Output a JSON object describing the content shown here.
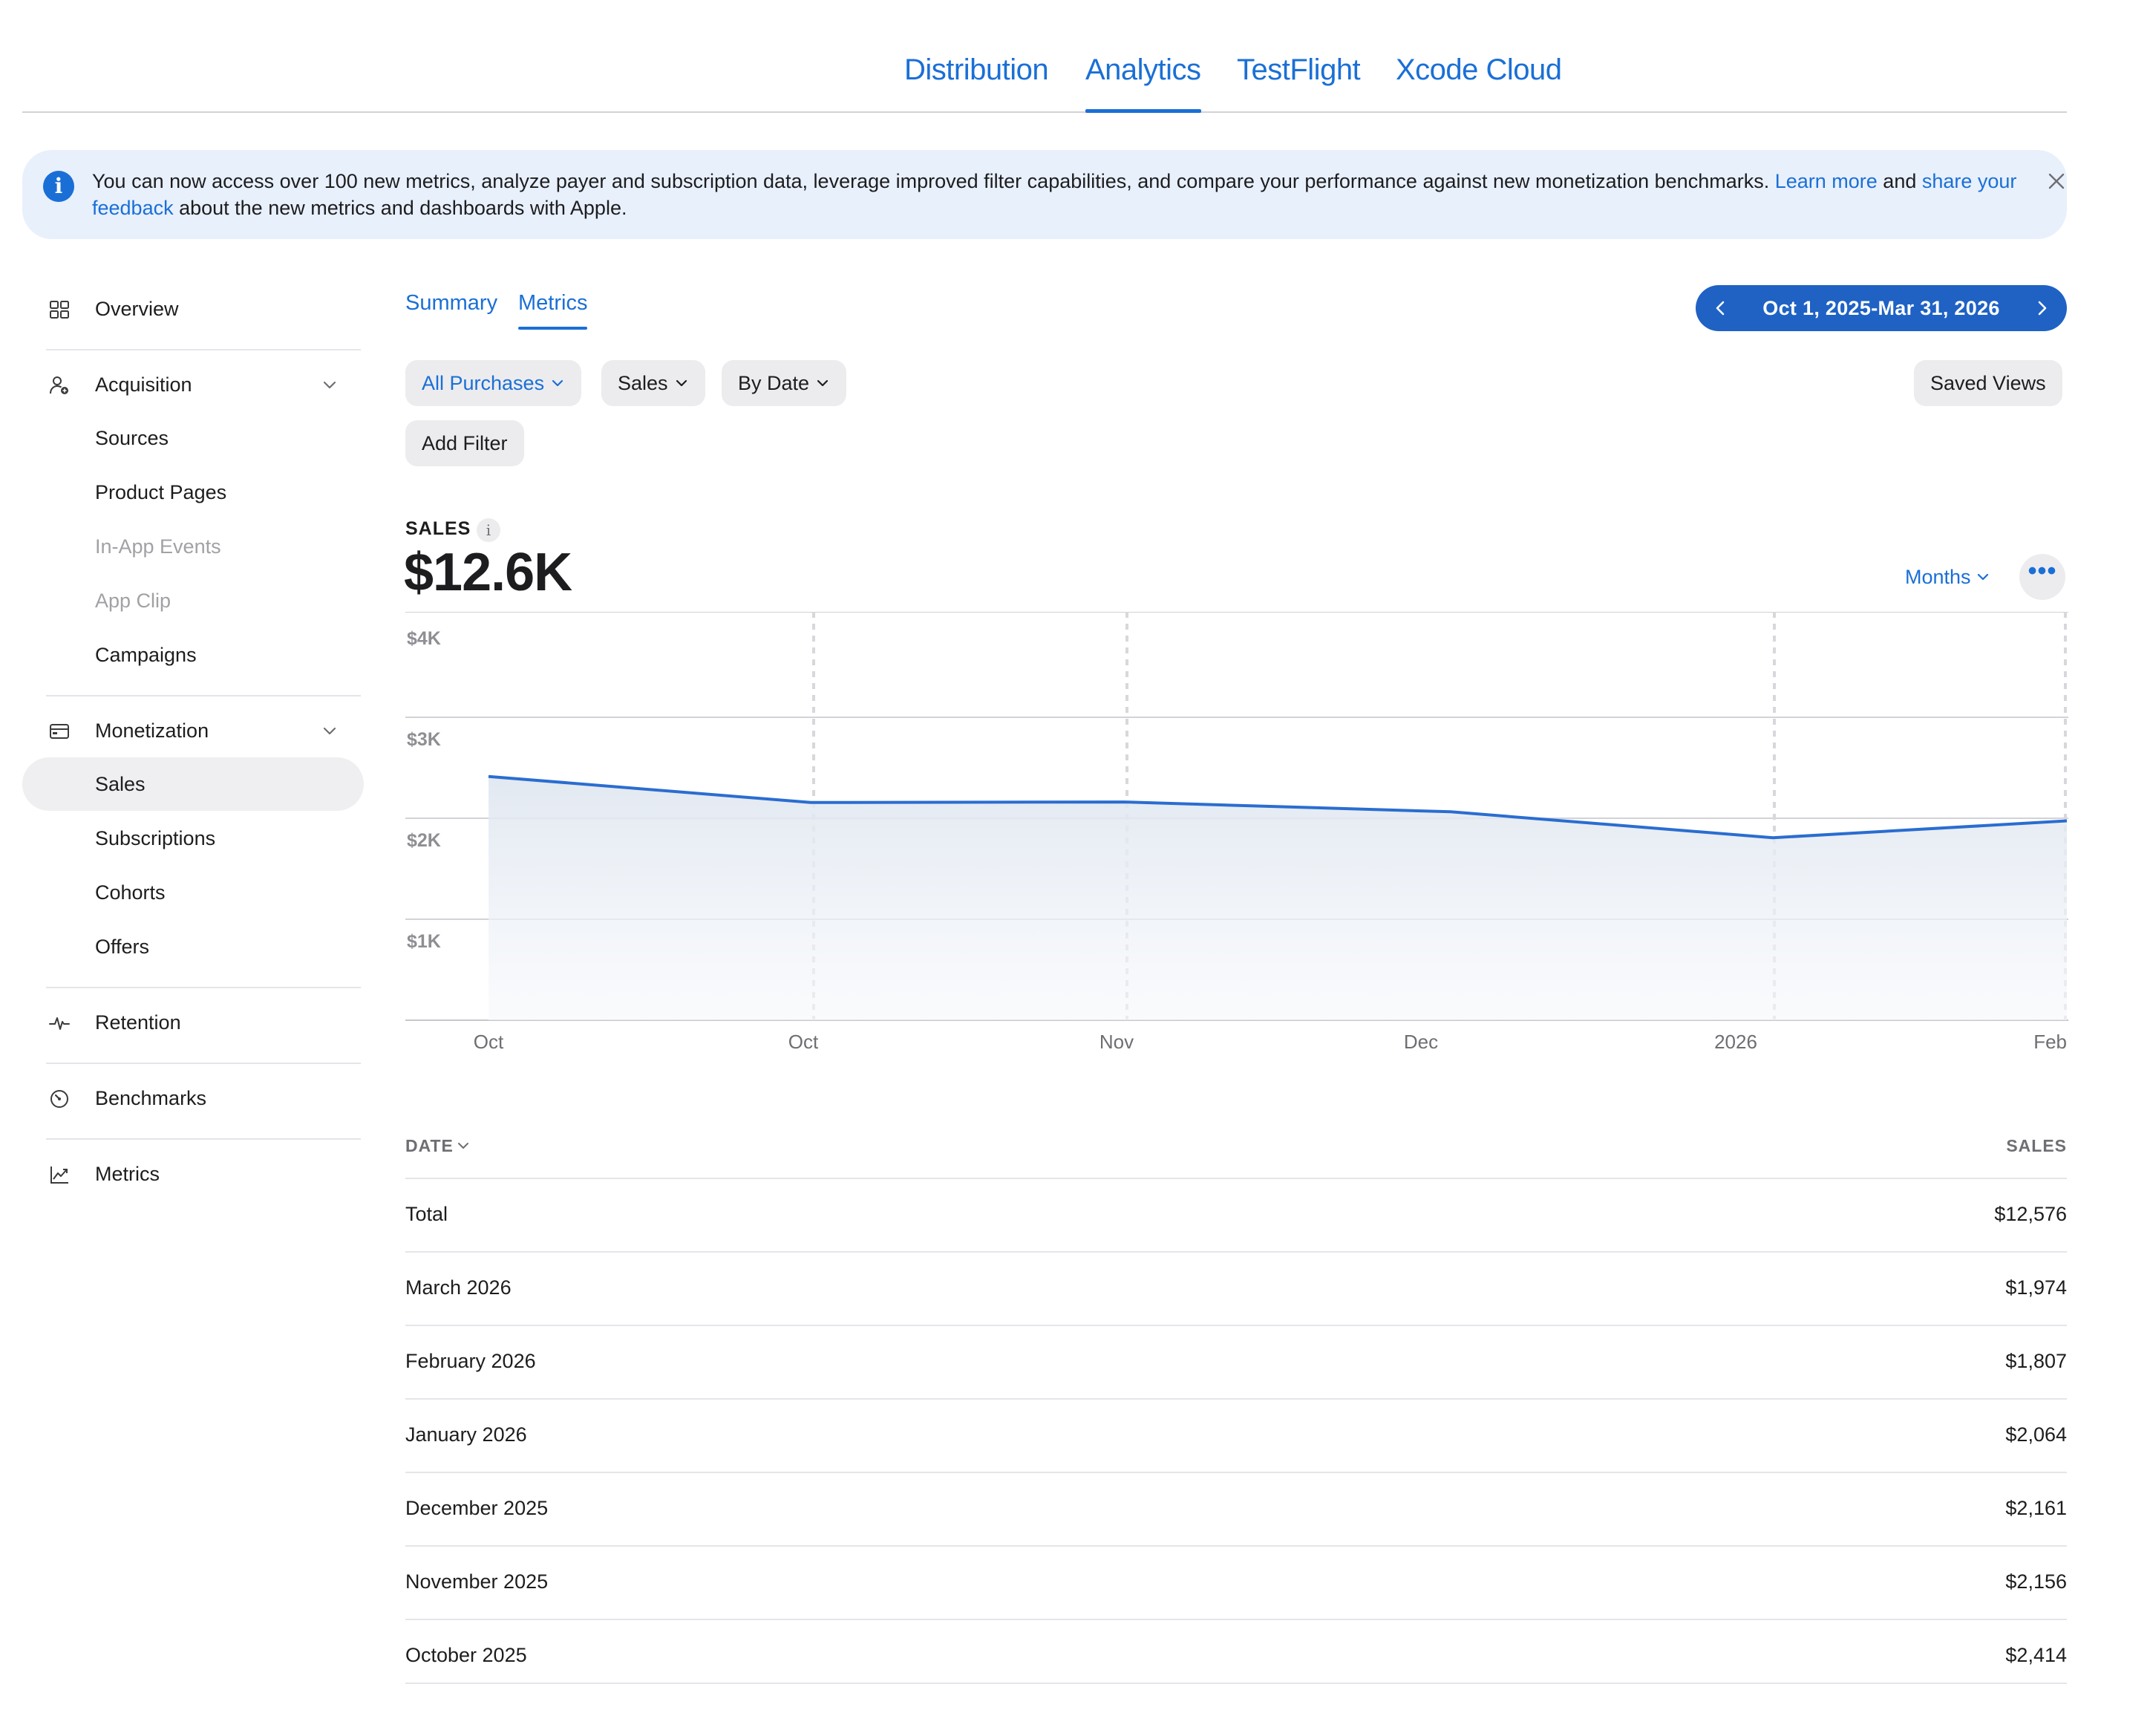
{
  "nav": {
    "tabs": [
      {
        "label": "Distribution",
        "active": false
      },
      {
        "label": "Analytics",
        "active": true
      },
      {
        "label": "TestFlight",
        "active": false
      },
      {
        "label": "Xcode Cloud",
        "active": false
      }
    ]
  },
  "banner": {
    "text_before": "You can now access over 100 new metrics, analyze payer and subscription data, leverage improved filter capabilities, and compare your performance against new monetization benchmarks. ",
    "learn_more": "Learn more",
    "text_and": " and ",
    "share_feedback": "share your feedback",
    "text_after": " about the new metrics and dashboards with Apple.",
    "close_icon": "close-icon",
    "info_icon": "info-icon"
  },
  "sidebar": {
    "overview": "Overview",
    "acquisition": "Acquisition",
    "sources": "Sources",
    "product_pages": "Product Pages",
    "in_app_events": "In-App Events",
    "app_clip": "App Clip",
    "campaigns": "Campaigns",
    "monetization": "Monetization",
    "sales": "Sales",
    "subscriptions": "Subscriptions",
    "cohorts": "Cohorts",
    "offers": "Offers",
    "retention": "Retention",
    "benchmarks": "Benchmarks",
    "metrics": "Metrics"
  },
  "main": {
    "subtabs": {
      "summary": "Summary",
      "metrics": "Metrics"
    },
    "date_range": "Oct 1, 2025-Mar 31, 2026",
    "filters": {
      "purchases": "All Purchases",
      "measure": "Sales",
      "group": "By Date",
      "add_filter": "Add Filter",
      "saved_views": "Saved Views"
    },
    "metric": {
      "label": "SALES",
      "value": "$12.6K",
      "period": "Months",
      "more_label": "•••"
    },
    "accent_color": "#1a6fd6"
  },
  "chart_data": {
    "type": "area",
    "x_tick_labels": [
      "Oct",
      "Oct",
      "Nov",
      "Dec",
      "2026",
      "Feb"
    ],
    "x": [
      "October 2025",
      "November 2025",
      "December 2025",
      "January 2026",
      "February 2026",
      "March 2026"
    ],
    "values": [
      2414,
      2156,
      2161,
      2064,
      1807,
      1974
    ],
    "y_tick_labels": [
      "$4K",
      "$3K",
      "$2K",
      "$1K"
    ],
    "y_ticks": [
      4000,
      3000,
      2000,
      1000
    ],
    "ylim": [
      0,
      4000
    ],
    "grid": true,
    "line_color": "#2a6dd0"
  },
  "table": {
    "col_date": "DATE",
    "col_sales": "SALES",
    "rows": [
      {
        "date": "Total",
        "sales": "$12,576"
      },
      {
        "date": "March 2026",
        "sales": "$1,974"
      },
      {
        "date": "February 2026",
        "sales": "$1,807"
      },
      {
        "date": "January 2026",
        "sales": "$2,064"
      },
      {
        "date": "December 2025",
        "sales": "$2,161"
      },
      {
        "date": "November 2025",
        "sales": "$2,156"
      },
      {
        "date": "October 2025",
        "sales": "$2,414"
      }
    ]
  }
}
